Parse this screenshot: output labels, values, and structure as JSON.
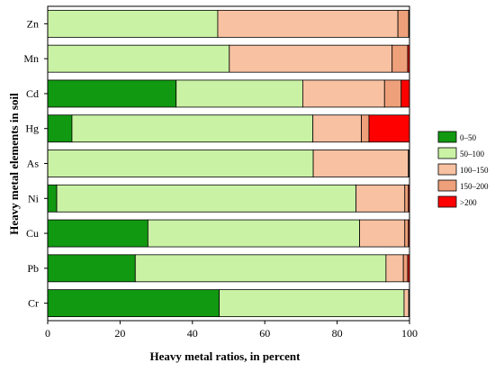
{
  "chart_data": {
    "type": "bar",
    "orientation": "horizontal",
    "stacked": true,
    "title": "",
    "xlabel": "Heavy metal ratios, in percent",
    "ylabel": "Heavy metal elements in soil",
    "xlim": [
      0,
      100
    ],
    "x_ticks": [
      0,
      20,
      40,
      60,
      80,
      100
    ],
    "grid": false,
    "legend_position": "right",
    "categories": [
      "Zn",
      "Mn",
      "Cd",
      "Hg",
      "As",
      "Ni",
      "Cu",
      "Pb",
      "Cr"
    ],
    "series": [
      {
        "name": "0–50",
        "color": "#119911",
        "values": [
          0,
          0,
          35.5,
          6.7,
          0,
          2.5,
          27.7,
          24.2,
          47.4
        ]
      },
      {
        "name": "50–100",
        "color": "#c9f2a4",
        "values": [
          47.0,
          50.2,
          35.0,
          66.6,
          73.4,
          82.7,
          58.5,
          69.3,
          51.1
        ]
      },
      {
        "name": "100–150",
        "color": "#f8c1a2",
        "values": [
          49.8,
          45.0,
          22.6,
          13.4,
          26.3,
          13.5,
          12.5,
          4.8,
          1.3
        ]
      },
      {
        "name": "150–200",
        "color": "#eda07a",
        "values": [
          3.0,
          4.3,
          4.6,
          2.1,
          0.2,
          1.0,
          1.0,
          1.2,
          0.1
        ]
      },
      {
        "name": ">200",
        "color": "#ff0000",
        "values": [
          0.2,
          0.5,
          2.3,
          11.2,
          0.1,
          0.3,
          0.3,
          0.5,
          0.1
        ]
      }
    ]
  }
}
